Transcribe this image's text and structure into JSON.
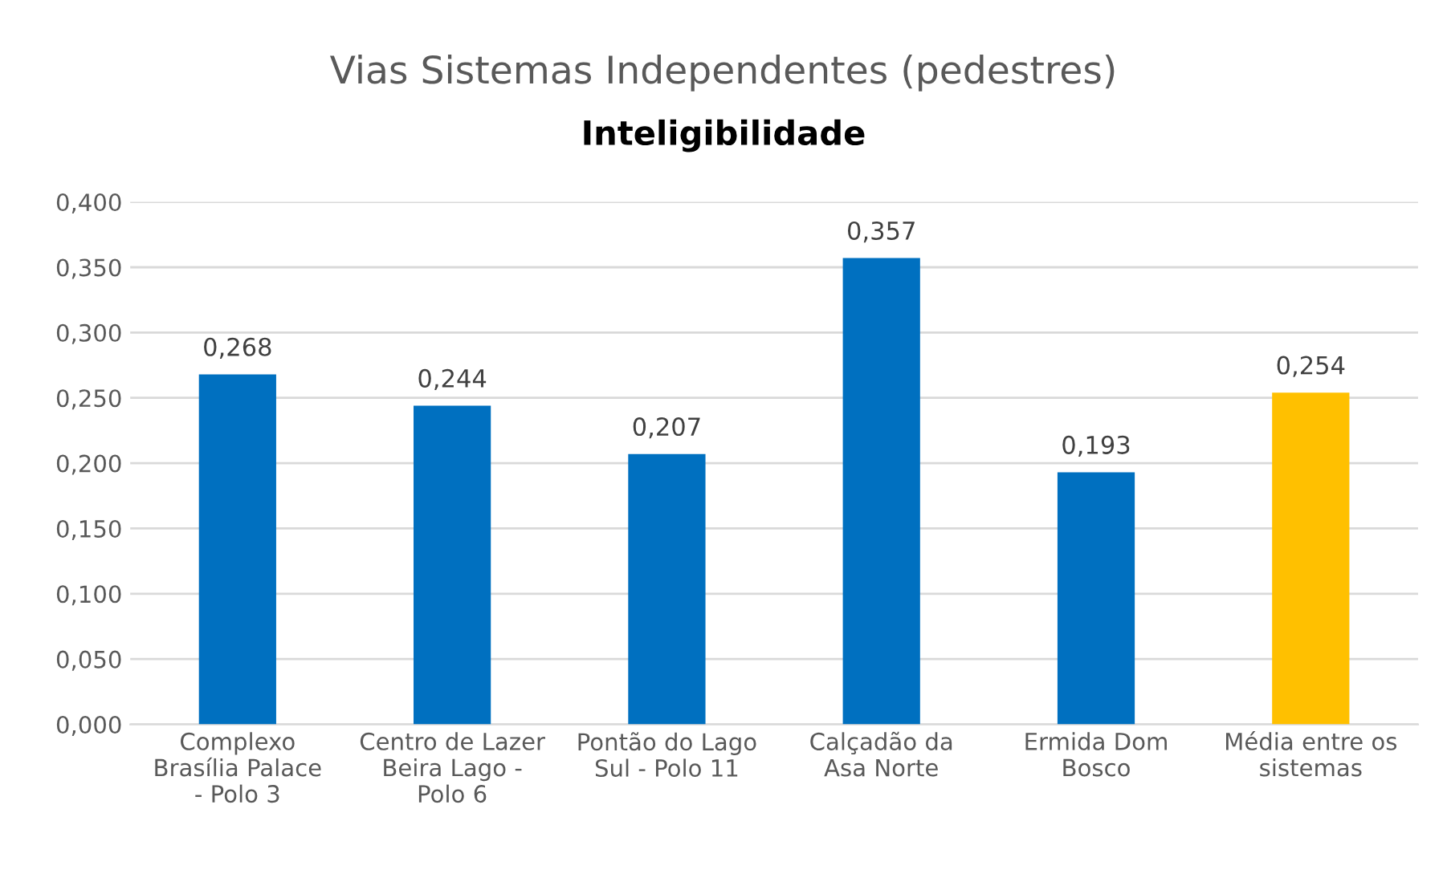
{
  "chart_data": {
    "type": "bar",
    "title": "Vias Sistemas Independentes (pedestres)",
    "subtitle": "Inteligibilidade",
    "categories": [
      "Complexo\nBrasília Palace\n- Polo 3",
      "Centro de Lazer\nBeira Lago -\nPolo 6",
      "Pontão do Lago\nSul - Polo 11",
      "Calçadão da\nAsa Norte",
      "Ermida Dom\nBosco",
      "Média entre os\nsistemas"
    ],
    "values": [
      0.268,
      0.244,
      0.207,
      0.357,
      0.193,
      0.254
    ],
    "colors": [
      "#0070c0",
      "#0070c0",
      "#0070c0",
      "#0070c0",
      "#0070c0",
      "#ffc000"
    ],
    "value_labels": [
      "0,268",
      "0,244",
      "0,207",
      "0,357",
      "0,193",
      "0,254"
    ],
    "ylim": [
      0,
      0.4
    ],
    "yticks": [
      {
        "value": 0,
        "label": "0,000"
      },
      {
        "value": 0.05,
        "label": "0,050"
      },
      {
        "value": 0.1,
        "label": "0,100"
      },
      {
        "value": 0.15,
        "label": "0,150"
      },
      {
        "value": 0.2,
        "label": "0,200"
      },
      {
        "value": 0.25,
        "label": "0,250"
      },
      {
        "value": 0.3,
        "label": "0,300"
      },
      {
        "value": 0.35,
        "label": "0,350"
      },
      {
        "value": 0.4,
        "label": "0,400"
      }
    ],
    "grid": "y"
  }
}
